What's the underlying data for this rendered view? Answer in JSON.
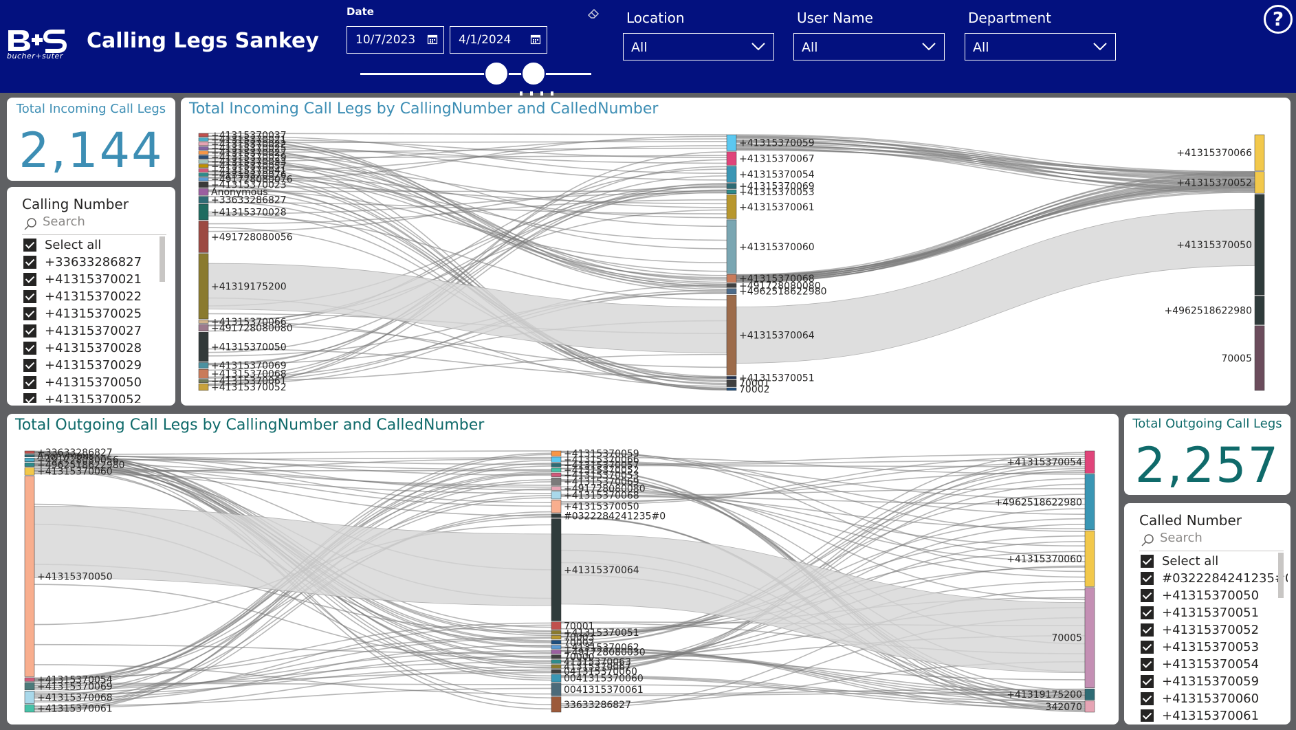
{
  "header": {
    "app_title": "Calling Legs Sankey",
    "logo_text": "B+S",
    "logo_sub": "bucher+suter",
    "date_label": "Date",
    "date_from": "10/7/2023",
    "date_to": "4/1/2024",
    "filters": [
      {
        "label": "Location",
        "value": "All"
      },
      {
        "label": "User Name",
        "value": "All"
      },
      {
        "label": "Department",
        "value": "All"
      }
    ],
    "help_glyph": "?"
  },
  "kpi_incoming": {
    "title": "Total Incoming Call Legs",
    "value": "2,144"
  },
  "kpi_outgoing": {
    "title": "Total Outgoing Call Legs",
    "value": "2,257"
  },
  "slicer_calling": {
    "title": "Calling Number",
    "search_placeholder": "Search",
    "items": [
      "Select all",
      "+33633286827",
      "+41315370021",
      "+41315370022",
      "+41315370025",
      "+41315370027",
      "+41315370028",
      "+41315370029",
      "+41315370050",
      "+41315370052"
    ]
  },
  "slicer_called": {
    "title": "Called Number",
    "search_placeholder": "Search",
    "items": [
      "Select all",
      "#0322284241235#0",
      "+41315370050",
      "+41315370051",
      "+41315370052",
      "+41315370053",
      "+41315370054",
      "+41315370059",
      "+41315370060",
      "+41315370061"
    ]
  },
  "incoming_title": "Total Incoming Call Legs by CallingNumber and CalledNumber",
  "outgoing_title": "Total Outgoing Call Legs by CallingNumber and CalledNumber",
  "chart_data": [
    {
      "type": "sankey",
      "title": "Total Incoming Call Legs by CallingNumber and CalledNumber",
      "levels": [
        {
          "nodes": [
            {
              "name": "+41315370037",
              "value": 3,
              "color": "#c0504d"
            },
            {
              "name": "+41315370021",
              "value": 3,
              "color": "#4bacc6"
            },
            {
              "name": "+41315370022",
              "value": 3,
              "color": "#e6a4b4"
            },
            {
              "name": "+41315370025",
              "value": 3,
              "color": "#8064a2"
            },
            {
              "name": "+41315370027",
              "value": 3,
              "color": "#f79646"
            },
            {
              "name": "+41315370029",
              "value": 3,
              "color": "#2c4d75"
            },
            {
              "name": "+41315370033",
              "value": 3,
              "color": "#a3c4bc"
            },
            {
              "name": "+41315370057",
              "value": 3,
              "color": "#bf9000"
            },
            {
              "name": "+41315370041",
              "value": 3,
              "color": "#d05a7a"
            },
            {
              "name": "+41315370076",
              "value": 3,
              "color": "#2e8b8b"
            },
            {
              "name": "+491728080076",
              "value": 3,
              "color": "#5b9bd5"
            },
            {
              "name": "+41315370023",
              "value": 5,
              "color": "#3a3a3a"
            },
            {
              "name": "Anonymous",
              "value": 6,
              "color": "#9b5fa0"
            },
            {
              "name": "+33633286827",
              "value": 6,
              "color": "#2e6b74"
            },
            {
              "name": "+41315370028",
              "value": 14,
              "color": "#1f6b60"
            },
            {
              "name": "+491728080056",
              "value": 28,
              "color": "#9c4a42"
            },
            {
              "name": "+41319175200",
              "value": 58,
              "color": "#8a7a2e"
            },
            {
              "name": "+41315370066",
              "value": 3,
              "color": "#d2b48c"
            },
            {
              "name": "+491728080080",
              "value": 6,
              "color": "#9c7a8c"
            },
            {
              "name": "+41315370050",
              "value": 26,
              "color": "#323a3a"
            },
            {
              "name": "+41315370069",
              "value": 5,
              "color": "#4c91a0"
            },
            {
              "name": "+41315370068",
              "value": 8,
              "color": "#c97b5a"
            },
            {
              "name": "+41315370061",
              "value": 3,
              "color": "#6f7b5a"
            },
            {
              "name": "+41315370052",
              "value": 6,
              "color": "#c8a23c"
            }
          ]
        },
        {
          "nodes": [
            {
              "name": "+41315370059",
              "value": 12,
              "color": "#5bc8f0"
            },
            {
              "name": "+41315370067",
              "value": 10,
              "color": "#e0447a"
            },
            {
              "name": "+41315370054",
              "value": 12,
              "color": "#3a96b4"
            },
            {
              "name": "+41315370069",
              "value": 4,
              "color": "#2e6b74"
            },
            {
              "name": "+41315370053",
              "value": 3,
              "color": "#2e8b8b"
            },
            {
              "name": "+41315370061",
              "value": 18,
              "color": "#b8972e"
            },
            {
              "name": "+41315370060",
              "value": 40,
              "color": "#7aa6b2"
            },
            {
              "name": "+41315370068",
              "value": 6,
              "color": "#c97b5a"
            },
            {
              "name": "+491728080080",
              "value": 3,
              "color": "#404040"
            },
            {
              "name": "+4962518622980",
              "value": 4,
              "color": "#4c6b8a"
            },
            {
              "name": "+41315370064",
              "value": 60,
              "color": "#9c6b4a"
            },
            {
              "name": "+41315370051",
              "value": 2,
              "color": "#1f2f4f"
            },
            {
              "name": "70001",
              "value": 5,
              "color": "#404040"
            },
            {
              "name": "70002",
              "value": 2,
              "color": "#1f4f7f"
            }
          ]
        },
        {
          "nodes": [
            {
              "name": "+41315370066",
              "value": 10,
              "color": "#f2c84b"
            },
            {
              "name": "+41315370052",
              "value": 6,
              "color": "#f2c84b"
            },
            {
              "name": "+41315370050",
              "value": 28,
              "color": "#2f3b3b"
            },
            {
              "name": "+4962518622980",
              "value": 8,
              "color": "#2f3b3b"
            },
            {
              "name": "70005",
              "value": 18,
              "color": "#6b4c5c"
            }
          ]
        }
      ]
    },
    {
      "type": "sankey",
      "title": "Total Outgoing Call Legs by CallingNumber and CalledNumber",
      "levels": [
        {
          "nodes": [
            {
              "name": "+33633286827",
              "value": 2,
              "color": "#c0504d"
            },
            {
              "name": "Anonymous",
              "value": 2,
              "color": "#2e6b74"
            },
            {
              "name": "+491728080056",
              "value": 3,
              "color": "#4bacc6"
            },
            {
              "name": "+4962518622980",
              "value": 3,
              "color": "#2e8b8b"
            },
            {
              "name": "+41315370060",
              "value": 6,
              "color": "#f2c84b"
            },
            {
              "name": "+41315370050",
              "value": 160,
              "color": "#f8ae8e"
            },
            {
              "name": "+41315370054",
              "value": 3,
              "color": "#d05a7a"
            },
            {
              "name": "+41315370069",
              "value": 6,
              "color": "#4c7a7a"
            },
            {
              "name": "+41315370068",
              "value": 10,
              "color": "#a9d8ea"
            },
            {
              "name": "+41315370061",
              "value": 6,
              "color": "#46c2a8"
            }
          ]
        },
        {
          "nodes": [
            {
              "name": "+41315370059",
              "value": 4,
              "color": "#f79646"
            },
            {
              "name": "+41315370066",
              "value": 4,
              "color": "#5bc8f0"
            },
            {
              "name": "+41315370057",
              "value": 3,
              "color": "#2e6b74"
            },
            {
              "name": "+41315370052",
              "value": 3,
              "color": "#46c2a8"
            },
            {
              "name": "+41315370053",
              "value": 3,
              "color": "#d05a7a"
            },
            {
              "name": "+41315370069",
              "value": 6,
              "color": "#7a7a7a"
            },
            {
              "name": "+491728080080",
              "value": 3,
              "color": "#e6a4b4"
            },
            {
              "name": "+41315370068",
              "value": 6,
              "color": "#a9d8ea"
            },
            {
              "name": "+41315370050",
              "value": 10,
              "color": "#f8ae8e"
            },
            {
              "name": "#0322284241235#0",
              "value": 3,
              "color": "#2f3b3b"
            },
            {
              "name": "+41315370064",
              "value": 80,
              "color": "#2f3b3b"
            },
            {
              "name": "70001",
              "value": 6,
              "color": "#c0504d"
            },
            {
              "name": "+41315370051",
              "value": 3,
              "color": "#8a7a2e"
            },
            {
              "name": "70003",
              "value": 3,
              "color": "#b8972e"
            },
            {
              "name": "70002",
              "value": 3,
              "color": "#1f4f7f"
            },
            {
              "name": "+41315370062",
              "value": 3,
              "color": "#5b9bd5"
            },
            {
              "name": "+491728080030",
              "value": 3,
              "color": "#9b5fa0"
            },
            {
              "name": "70000",
              "value": 3,
              "color": "#404040"
            },
            {
              "name": "41315370063",
              "value": 3,
              "color": "#2e8b8b"
            },
            {
              "name": "41315370067",
              "value": 3,
              "color": "#8a7a2e"
            },
            {
              "name": "041315370060",
              "value": 3,
              "color": "#404040"
            },
            {
              "name": "0041315370060",
              "value": 6,
              "color": "#3a96b4"
            },
            {
              "name": "0041315370061",
              "value": 10,
              "color": "#4c6b7a"
            },
            {
              "name": "33633286827",
              "value": 12,
              "color": "#9c5a3a"
            }
          ]
        },
        {
          "nodes": [
            {
              "name": "+41315370054",
              "value": 4,
              "color": "#e0447a"
            },
            {
              "name": "+4962518622980",
              "value": 10,
              "color": "#3a96b4"
            },
            {
              "name": "+41315370060",
              "value": 10,
              "color": "#f2c84b"
            },
            {
              "name": "70005",
              "value": 18,
              "color": "#c48fb4"
            },
            {
              "name": "+41319175200",
              "value": 2,
              "color": "#2e6b74"
            },
            {
              "name": "342070",
              "value": 2,
              "color": "#e6a4b4"
            }
          ]
        }
      ]
    }
  ]
}
